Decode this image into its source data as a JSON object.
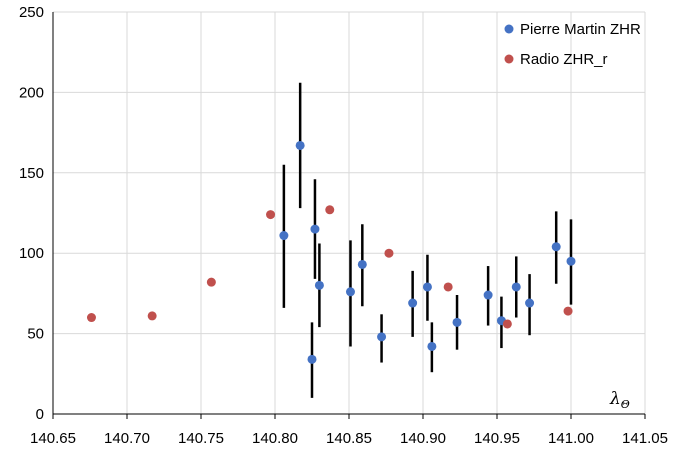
{
  "chart_data": {
    "type": "scatter",
    "xlabel": "λ",
    "xlabel_sub": "Θ",
    "ylabel": "",
    "xlim": [
      140.65,
      141.05
    ],
    "ylim": [
      0,
      250
    ],
    "xticks": [
      "140.65",
      "140.70",
      "140.75",
      "140.80",
      "140.85",
      "140.90",
      "140.95",
      "141.00",
      "141.05"
    ],
    "yticks": [
      "0",
      "50",
      "100",
      "150",
      "200",
      "250"
    ],
    "grid": true,
    "legend_position": "top-right",
    "series": [
      {
        "name": "Pierre Martin ZHR",
        "color": "#4472c4",
        "points": [
          {
            "x": 140.806,
            "y": 111,
            "lo": 66,
            "hi": 155
          },
          {
            "x": 140.817,
            "y": 167,
            "lo": 128,
            "hi": 206
          },
          {
            "x": 140.825,
            "y": 34,
            "lo": 10,
            "hi": 57
          },
          {
            "x": 140.827,
            "y": 115,
            "lo": 84,
            "hi": 146
          },
          {
            "x": 140.83,
            "y": 80,
            "lo": 54,
            "hi": 106
          },
          {
            "x": 140.851,
            "y": 76,
            "lo": 42,
            "hi": 108
          },
          {
            "x": 140.859,
            "y": 93,
            "lo": 67,
            "hi": 118
          },
          {
            "x": 140.872,
            "y": 48,
            "lo": 32,
            "hi": 62
          },
          {
            "x": 140.893,
            "y": 69,
            "lo": 48,
            "hi": 89
          },
          {
            "x": 140.903,
            "y": 79,
            "lo": 58,
            "hi": 99
          },
          {
            "x": 140.906,
            "y": 42,
            "lo": 26,
            "hi": 57
          },
          {
            "x": 140.923,
            "y": 57,
            "lo": 40,
            "hi": 74
          },
          {
            "x": 140.944,
            "y": 74,
            "lo": 55,
            "hi": 92
          },
          {
            "x": 140.953,
            "y": 58,
            "lo": 41,
            "hi": 73
          },
          {
            "x": 140.963,
            "y": 79,
            "lo": 60,
            "hi": 98
          },
          {
            "x": 140.972,
            "y": 69,
            "lo": 49,
            "hi": 87
          },
          {
            "x": 140.99,
            "y": 104,
            "lo": 81,
            "hi": 126
          },
          {
            "x": 141.0,
            "y": 95,
            "lo": 68,
            "hi": 121
          }
        ]
      },
      {
        "name": "Radio ZHR_r",
        "color": "#c0504d",
        "points": [
          {
            "x": 140.676,
            "y": 60
          },
          {
            "x": 140.717,
            "y": 61
          },
          {
            "x": 140.757,
            "y": 82
          },
          {
            "x": 140.797,
            "y": 124
          },
          {
            "x": 140.837,
            "y": 127
          },
          {
            "x": 140.877,
            "y": 100
          },
          {
            "x": 140.917,
            "y": 79
          },
          {
            "x": 140.957,
            "y": 56
          },
          {
            "x": 140.998,
            "y": 64
          }
        ]
      }
    ]
  }
}
